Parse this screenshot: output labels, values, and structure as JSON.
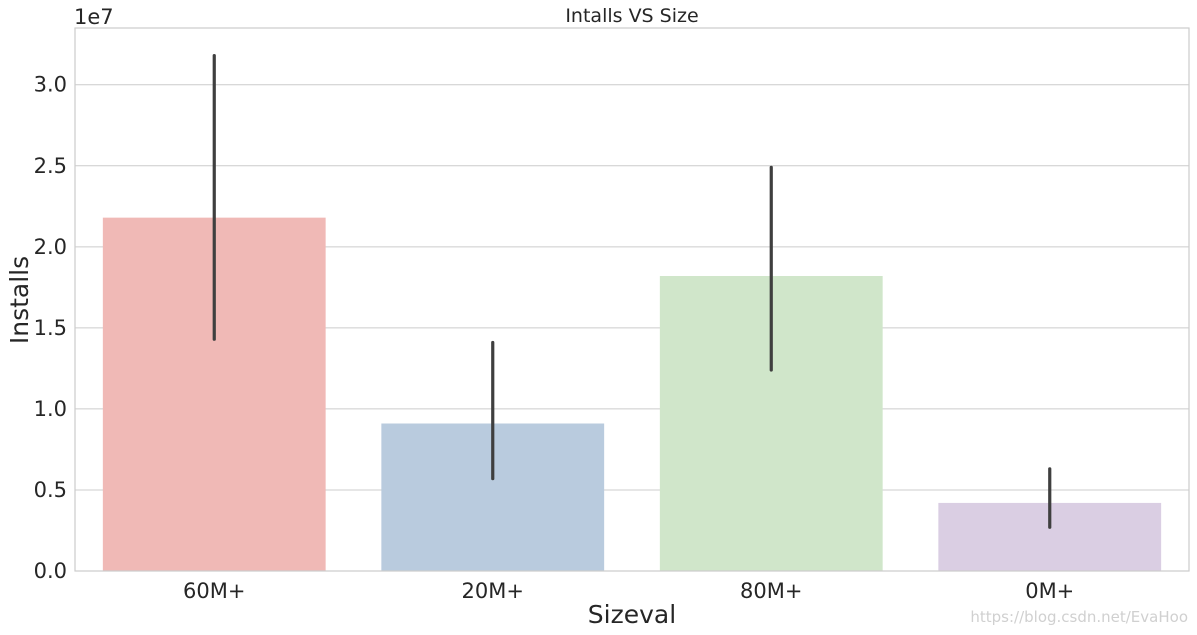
{
  "chart_data": {
    "type": "bar",
    "title": "Intalls VS Size",
    "xlabel": "Sizeval",
    "ylabel": "Installs",
    "y_offset_label": "1e7",
    "y_scale": 10000000,
    "ylim": [
      0,
      3.35
    ],
    "yticks": [
      0.0,
      0.5,
      1.0,
      1.5,
      2.0,
      2.5,
      3.0
    ],
    "ytick_labels": [
      "0.0",
      "0.5",
      "1.0",
      "1.5",
      "2.0",
      "2.5",
      "3.0"
    ],
    "grid": true,
    "categories": [
      "60M+",
      "20M+",
      "80M+",
      "0M+"
    ],
    "values": [
      2.18,
      0.91,
      1.82,
      0.42
    ],
    "error_low": [
      1.43,
      0.57,
      1.24,
      0.27
    ],
    "error_high": [
      3.18,
      1.41,
      2.49,
      0.63
    ],
    "colors": [
      "#f0b9b6",
      "#b9cbde",
      "#d0e6ca",
      "#dacee3"
    ],
    "error_color": "#3f3f3f",
    "grid_color": "#cccccc"
  },
  "watermark": "https://blog.csdn.net/EvaHoo"
}
